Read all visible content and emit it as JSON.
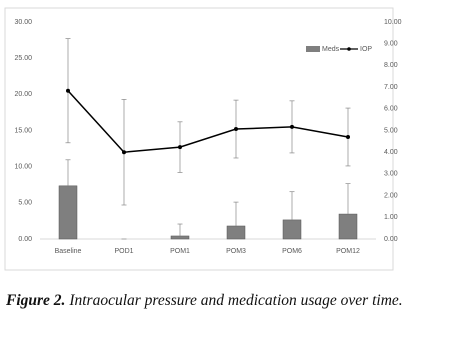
{
  "chart_data": {
    "type": "bar-line",
    "categories": [
      "Baseline",
      "POD1",
      "POM1",
      "POM3",
      "POM6",
      "POM12"
    ],
    "series": [
      {
        "name": "Meds",
        "type": "bar",
        "axis": "y2",
        "color": "#7f7f7f",
        "values": [
          2.45,
          0,
          0.14,
          0.6,
          0.88,
          1.15
        ],
        "errors": [
          1.2,
          0,
          0.55,
          1.1,
          1.3,
          1.4
        ]
      },
      {
        "name": "IOP",
        "type": "line",
        "color": "#000000",
        "values": [
          20.5,
          12.0,
          12.7,
          15.2,
          15.5,
          14.1
        ],
        "errors": [
          7.2,
          7.3,
          3.5,
          4.0,
          3.6,
          4.0
        ]
      }
    ],
    "ylim": [
      0,
      30
    ],
    "yticks": [
      {
        "value": 0,
        "label": "0.00"
      },
      {
        "value": 5,
        "label": "5.00"
      },
      {
        "value": 10,
        "label": "10.00"
      },
      {
        "value": 15,
        "label": "15.00"
      },
      {
        "value": 20,
        "label": "20.00"
      },
      {
        "value": 25,
        "label": "25.00"
      },
      {
        "value": 30,
        "label": "30.00"
      }
    ],
    "y2lim": [
      0,
      10
    ],
    "y2ticks": [
      {
        "value": 0,
        "label": "0.00"
      },
      {
        "value": 1,
        "label": "1.00"
      },
      {
        "value": 2,
        "label": "2.00"
      },
      {
        "value": 3,
        "label": "3.00"
      },
      {
        "value": 4,
        "label": "4.00"
      },
      {
        "value": 5,
        "label": "5.00"
      },
      {
        "value": 6,
        "label": "6.00"
      },
      {
        "value": 7,
        "label": "7.00"
      },
      {
        "value": 8,
        "label": "8.00"
      },
      {
        "value": 9,
        "label": "9.00"
      },
      {
        "value": 10,
        "label": "10.00"
      }
    ],
    "legend": "top-right",
    "caption": {
      "label": "Figure 2.",
      "text": "Intraocular pressure and medication usage over time."
    }
  }
}
